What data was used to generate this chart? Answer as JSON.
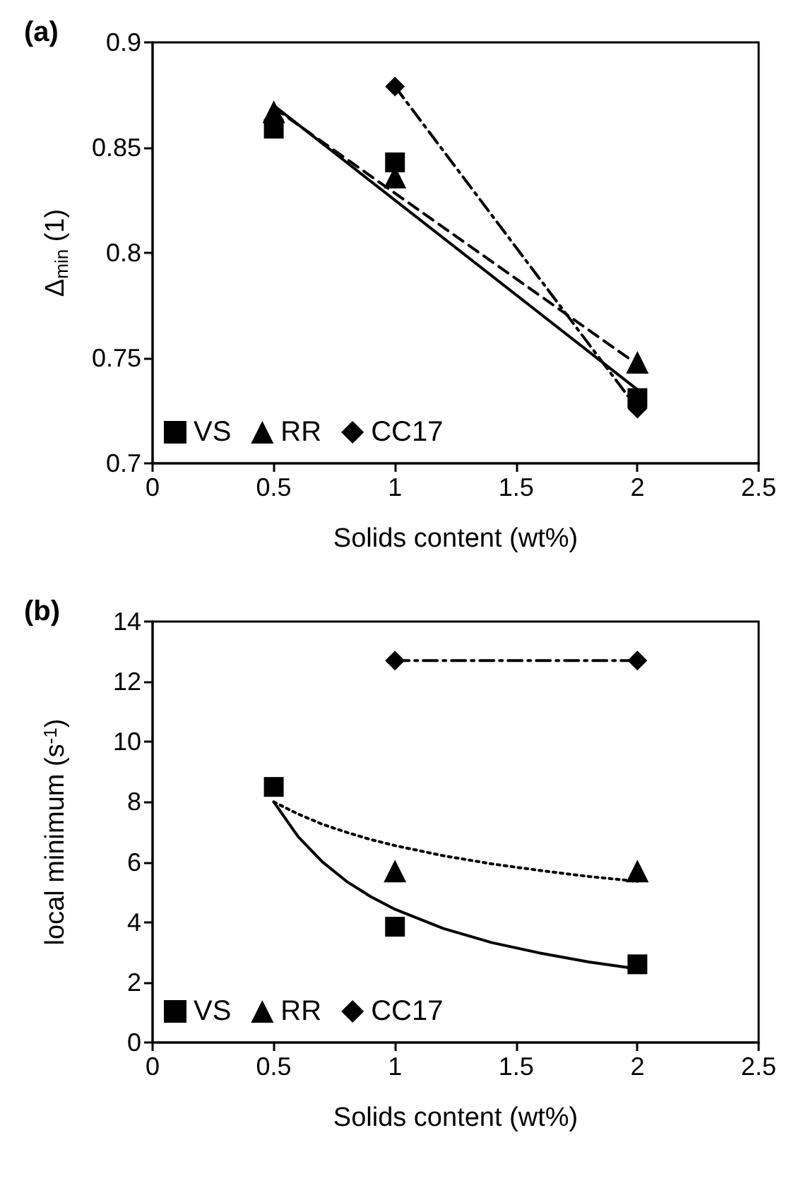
{
  "chart_data": [
    {
      "type": "scatter",
      "title": "(a)",
      "xlabel": "Solids content (wt%)",
      "ylabel": "Δ$_{min}$ (1)",
      "xlim": [
        0,
        2.5
      ],
      "xticks": [
        0,
        0.5,
        1,
        1.5,
        2,
        2.5
      ],
      "ylim": [
        0.7,
        0.9
      ],
      "yticks": [
        0.7,
        0.75,
        0.8,
        0.85,
        0.9
      ],
      "grid": false,
      "legend": "bottom left",
      "series": [
        {
          "name": "VS",
          "color": "#000000",
          "marker": "square",
          "x": [
            0.5,
            1,
            2
          ],
          "values": [
            0.859,
            0.843,
            0.731
          ]
        },
        {
          "name": "RR",
          "color": "#000000",
          "marker": "triangle",
          "x": [
            0.5,
            1,
            2
          ],
          "values": [
            0.867,
            0.836,
            0.748
          ]
        },
        {
          "name": "CC17",
          "color": "#000000",
          "marker": "diamond",
          "x": [
            1,
            2
          ],
          "values": [
            0.879,
            0.726
          ]
        },
        {
          "type": "line",
          "color": "#000000",
          "marker": "none",
          "line_style": "solid",
          "x": [
            0.5,
            2
          ],
          "values": [
            0.87,
            0.735
          ]
        },
        {
          "type": "line",
          "color": "#000000",
          "marker": "none",
          "line_style": "dashed",
          "x": [
            0.5,
            2
          ],
          "values": [
            0.869,
            0.747
          ]
        },
        {
          "type": "line",
          "color": "#000000",
          "marker": "none",
          "line_style": "dashdot",
          "x": [
            1,
            2
          ],
          "values": [
            0.879,
            0.726
          ]
        }
      ]
    },
    {
      "type": "scatter",
      "title": "(b)",
      "xlabel": "Solids content (wt%)",
      "ylabel": "local minimum (s$^{-1}$)",
      "xlim": [
        0,
        2.5
      ],
      "xticks": [
        0,
        0.5,
        1,
        1.5,
        2,
        2.5
      ],
      "ylim": [
        0,
        14
      ],
      "yticks": [
        0,
        2,
        4,
        6,
        8,
        10,
        12,
        14
      ],
      "grid": false,
      "legend": "bottom left",
      "series": [
        {
          "name": "VS",
          "color": "#000000",
          "marker": "square",
          "x": [
            0.5,
            1,
            2
          ],
          "values": [
            8.5,
            3.85,
            2.6
          ]
        },
        {
          "name": "RR",
          "color": "#000000",
          "marker": "triangle",
          "x": [
            1,
            2
          ],
          "values": [
            5.7,
            5.7
          ]
        },
        {
          "name": "CC17",
          "color": "#000000",
          "marker": "diamond",
          "x": [
            1,
            2
          ],
          "values": [
            12.7,
            12.7
          ]
        },
        {
          "type": "line",
          "color": "#000000",
          "marker": "none",
          "line_style": "solid",
          "x": [
            0.5,
            0.6,
            0.7,
            0.8,
            0.9,
            1,
            1.2,
            1.4,
            1.6,
            1.8,
            2
          ],
          "values": [
            8.0,
            6.85,
            6.01,
            5.36,
            4.85,
            4.43,
            3.79,
            3.32,
            2.97,
            2.68,
            2.45
          ]
        },
        {
          "type": "line",
          "color": "#000000",
          "marker": "none",
          "line_style": "dotted",
          "x": [
            0.5,
            0.6,
            0.7,
            0.8,
            0.9,
            1,
            1.2,
            1.4,
            1.6,
            1.8,
            2
          ],
          "values": [
            8.0,
            7.6,
            7.26,
            6.99,
            6.75,
            6.55,
            6.21,
            5.94,
            5.72,
            5.52,
            5.36
          ]
        },
        {
          "type": "line",
          "color": "#000000",
          "marker": "none",
          "line_style": "dashdot",
          "x": [
            1,
            2
          ],
          "values": [
            12.7,
            12.7
          ]
        }
      ]
    }
  ]
}
